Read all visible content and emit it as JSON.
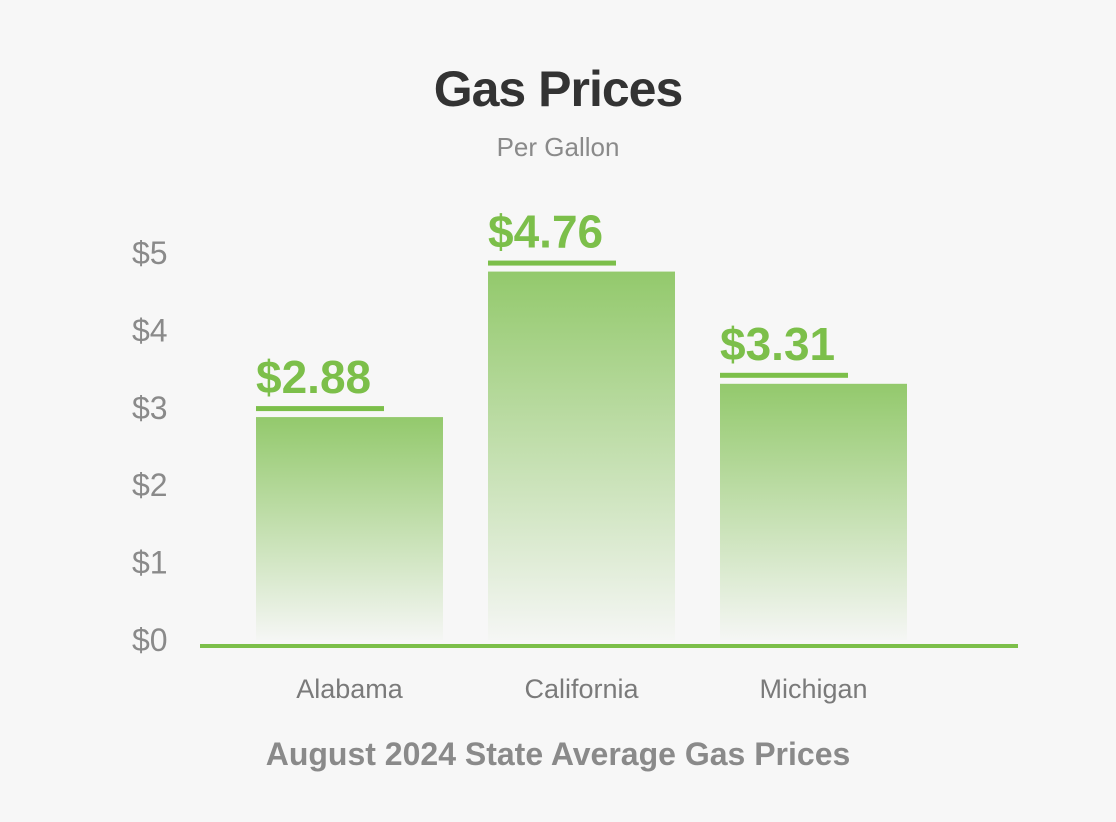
{
  "chart_data": {
    "type": "bar",
    "title": "Gas Prices",
    "subtitle": "Per Gallon",
    "caption": "August 2024 State Average Gas Prices",
    "categories": [
      "Alabama",
      "California",
      "Michigan"
    ],
    "values": [
      2.88,
      4.76,
      3.31
    ],
    "value_labels": [
      "$2.88",
      "$4.76",
      "$3.31"
    ],
    "ylim": [
      0,
      5
    ],
    "yticks": [
      0,
      1,
      2,
      3,
      4,
      5
    ],
    "ytick_labels": [
      "$0",
      "$1",
      "$2",
      "$3",
      "$4",
      "$5"
    ],
    "xlabel": "",
    "ylabel": "",
    "grid": false,
    "colors": {
      "accent": "#7cbf4a",
      "bar_top": "#93c96c",
      "text_dark": "#333333",
      "text_muted": "#8a8a8a"
    }
  }
}
